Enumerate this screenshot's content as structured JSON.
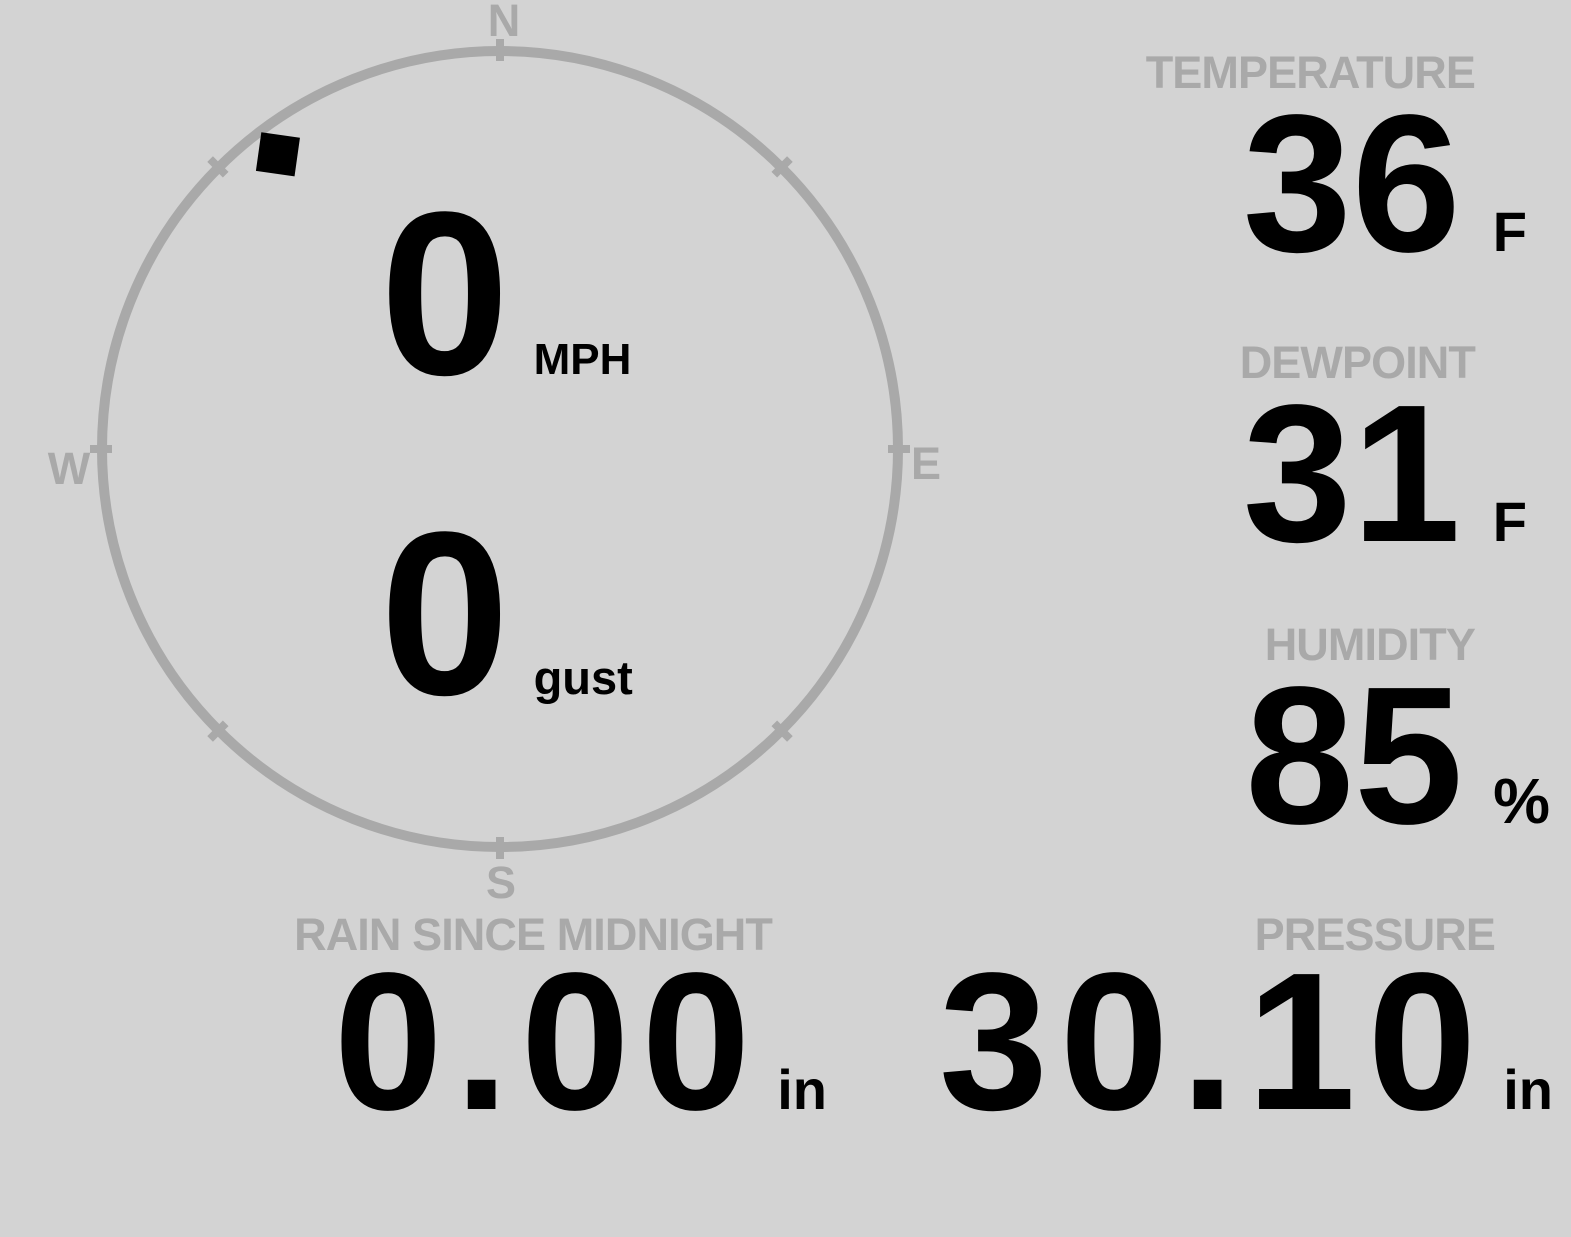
{
  "theme": {
    "background": "#d3d3d3",
    "muted": "#a9a9a9",
    "value_color": "#000000"
  },
  "wind": {
    "speed": "0",
    "speed_unit": "MPH",
    "gust": "0",
    "gust_unit": "gust",
    "direction_deg": 323,
    "compass_labels": {
      "north": "N",
      "east": "E",
      "south": "S",
      "west": "W"
    }
  },
  "metrics": [
    {
      "label": "TEMPERATURE",
      "value": "36",
      "unit": "F"
    },
    {
      "label": "DEWPOINT",
      "value": "31",
      "unit": "F"
    },
    {
      "label": "HUMIDITY",
      "value": "85",
      "unit": "%"
    }
  ],
  "bottom_metrics": [
    {
      "label": "RAIN SINCE MIDNIGHT",
      "value": "0.00",
      "unit": "in"
    },
    {
      "label": "PRESSURE",
      "value": "30.10",
      "unit": "in"
    }
  ]
}
